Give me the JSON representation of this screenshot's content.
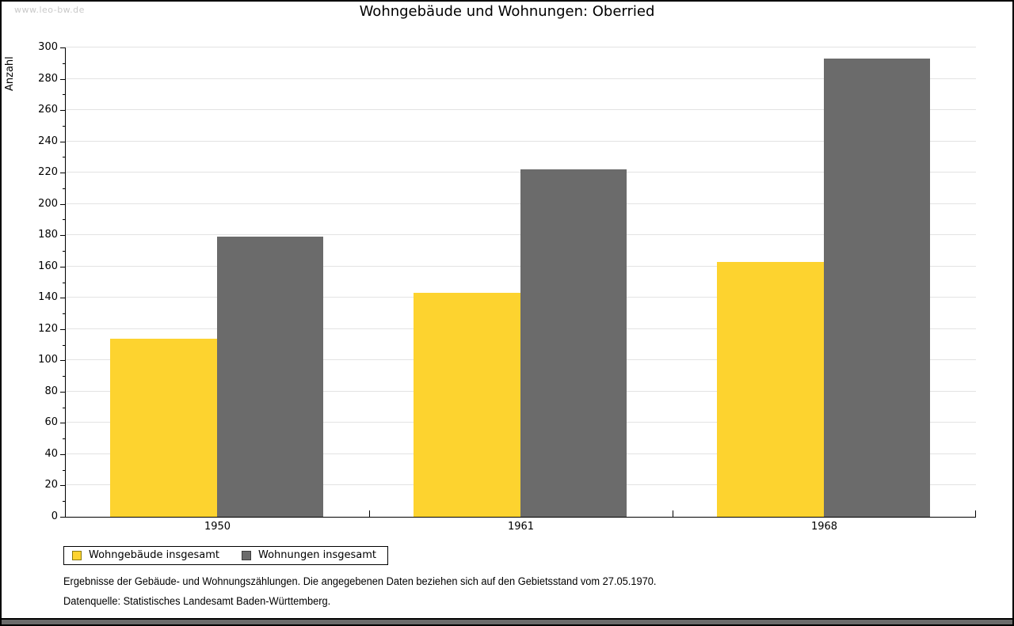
{
  "page": {
    "watermark": "www.leo-bw.de",
    "footnote_line1": "Ergebnisse der Gebäude- und Wohnungszählungen. Die angegebenen Daten beziehen sich auf den Gebietsstand vom 27.05.1970.",
    "footnote_line2": "Datenquelle: Statistisches Landesamt Baden-Württemberg."
  },
  "chart_data": {
    "type": "bar",
    "title": "Wohngebäude und Wohnungen: Oberried",
    "ylabel": "Anzahl",
    "xlabel": "",
    "categories": [
      "1950",
      "1961",
      "1968"
    ],
    "series": [
      {
        "name": "Wohngebäude insgesamt",
        "color": "#FDD32F",
        "swatch_border": "#8a7a10",
        "values": [
          114,
          143,
          163
        ]
      },
      {
        "name": "Wohnungen insgesamt",
        "color": "#6B6B6B",
        "swatch_border": "#3c3c3c",
        "values": [
          179,
          222,
          293
        ]
      }
    ],
    "ylim": [
      0,
      300
    ],
    "ytick_major": 20,
    "ytick_minor": 10,
    "grid": true,
    "legend_position": "bottom-left",
    "colors": {
      "gridline": "#e3e3e3",
      "axis": "#000000",
      "watermark": "#c9c9c9"
    }
  }
}
